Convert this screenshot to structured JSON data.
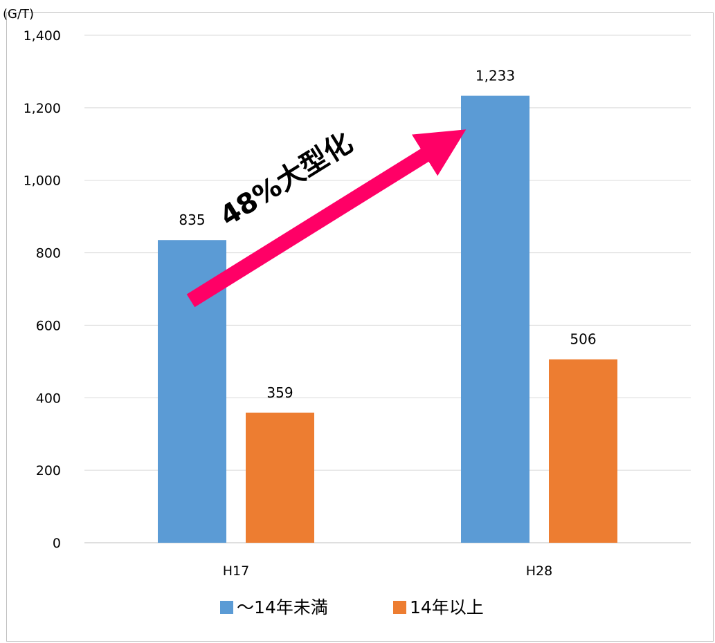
{
  "chart_data": {
    "type": "bar",
    "y_unit_label": "(G/T)",
    "categories": [
      "H17",
      "H28"
    ],
    "series": [
      {
        "name": "～14年未満",
        "values": [
          835,
          1233
        ],
        "color": "#5b9bd5"
      },
      {
        "name": "14年以上",
        "values": [
          359,
          506
        ],
        "color": "#ed7d31"
      }
    ],
    "value_labels": [
      [
        "835",
        "1,233"
      ],
      [
        "359",
        "506"
      ]
    ],
    "ylim": [
      0,
      1400
    ],
    "y_ticks": [
      0,
      200,
      400,
      600,
      800,
      1000,
      1200,
      1400
    ],
    "y_tick_labels": [
      "0",
      "200",
      "400",
      "600",
      "800",
      "1,000",
      "1,200",
      "1,400"
    ],
    "grid": true,
    "legend_position": "bottom",
    "annotation": {
      "text": "48%大型化",
      "color": "#ff0066",
      "from": {
        "category": "H17",
        "value": 620
      },
      "to": {
        "category": "H28",
        "value": 1150
      }
    }
  }
}
